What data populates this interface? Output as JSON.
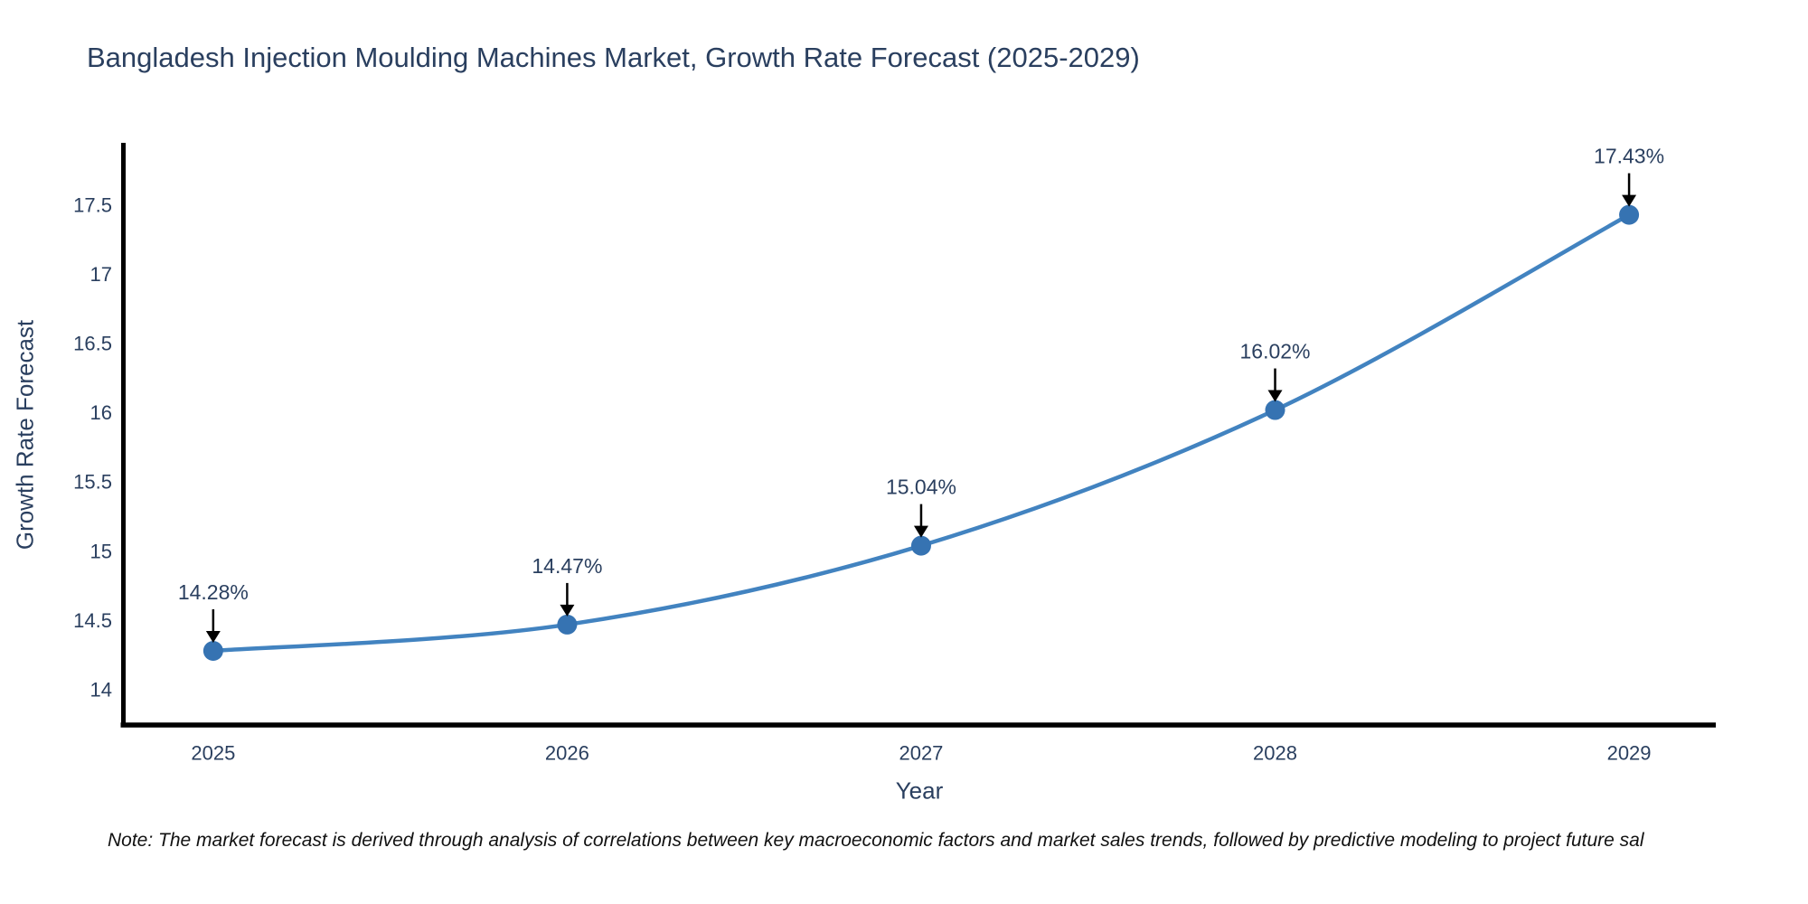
{
  "title": "Bangladesh Injection Moulding Machines Market, Growth Rate Forecast (2025-2029)",
  "note": "Note: The market forecast is derived through analysis of correlations between key macroeconomic factors and market sales trends, followed by predictive modeling to project future sal",
  "chart_data": {
    "type": "line",
    "title": "Bangladesh Injection Moulding Machines Market, Growth Rate Forecast (2025-2029)",
    "x": [
      2025,
      2026,
      2027,
      2028,
      2029
    ],
    "values": [
      14.28,
      14.47,
      15.04,
      16.02,
      17.43
    ],
    "point_labels": [
      "14.28%",
      "14.47%",
      "15.04%",
      "16.02%",
      "17.43%"
    ],
    "xlabel": "Year",
    "ylabel": "Growth Rate Forecast",
    "xlim": [
      2024.745,
      2029.245
    ],
    "ylim": [
      13.725,
      17.95
    ],
    "xticks": [
      2025,
      2026,
      2027,
      2028,
      2029
    ],
    "xtick_labels": [
      "2025",
      "2026",
      "2027",
      "2028",
      "2029"
    ],
    "yticks": [
      14,
      14.5,
      15,
      15.5,
      16,
      16.5,
      17,
      17.5
    ],
    "ytick_labels": [
      "14",
      "14.5",
      "15",
      "15.5",
      "16",
      "16.5",
      "17",
      "17.5"
    ],
    "grid": false,
    "legend": "none",
    "line_shape": "spline",
    "colors": {
      "line": "#4283c0",
      "marker": "#3673b2",
      "axis": "#000000",
      "text": "#2a3f5f",
      "arrow": "#000000",
      "background": "#ffffff"
    }
  }
}
